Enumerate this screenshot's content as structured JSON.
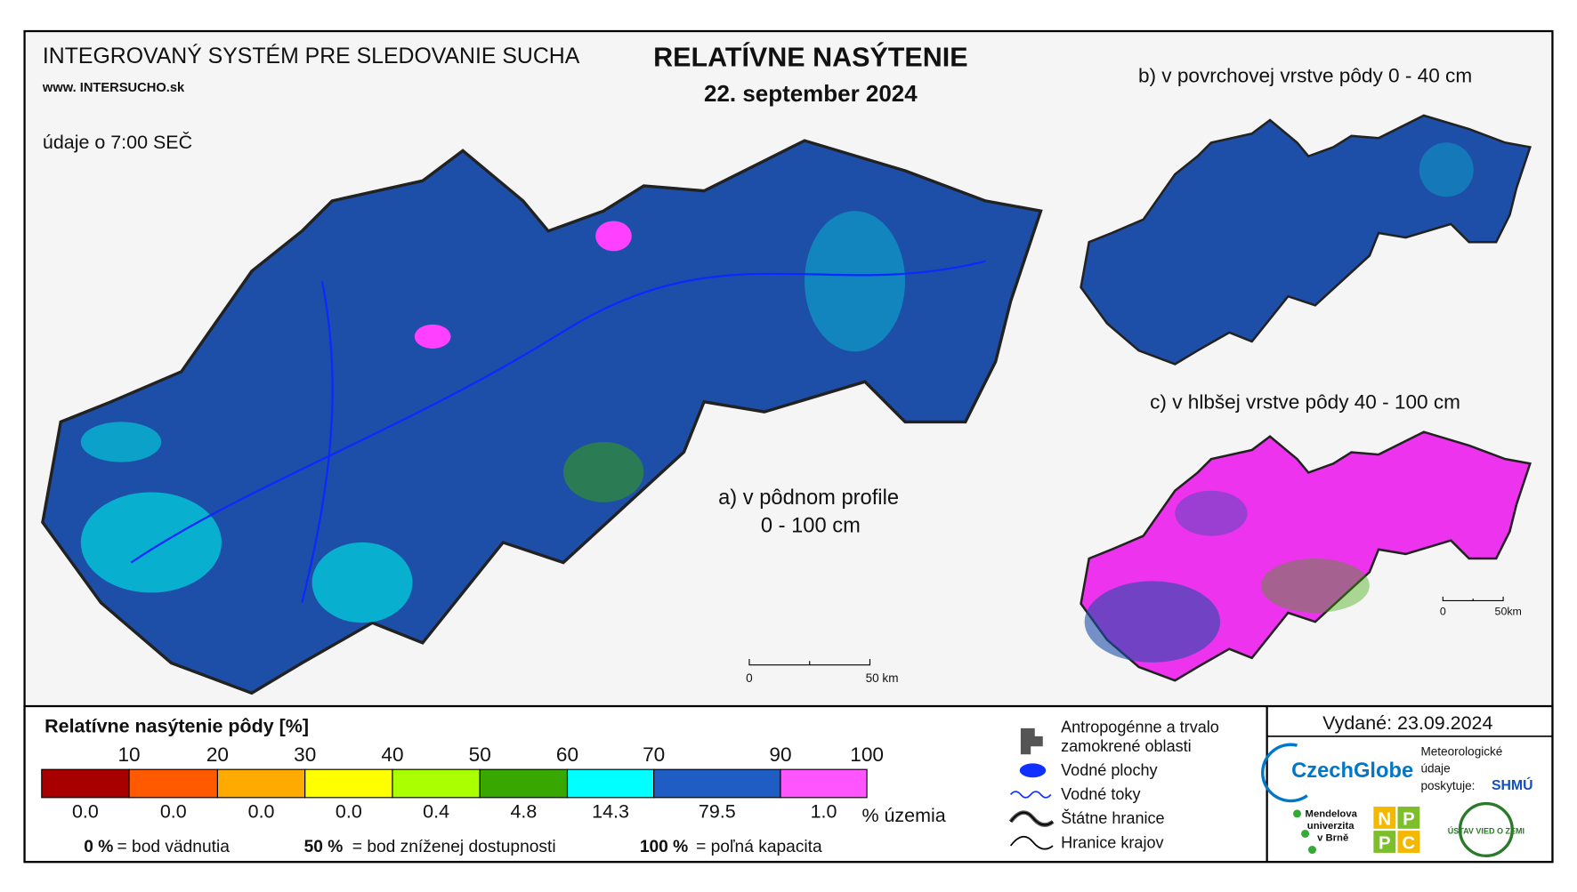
{
  "header": {
    "system": "INTEGROVANÝ SYSTÉM PRE SLEDOVANIE SUCHA",
    "website": "www. INTERSUCHO.sk",
    "time_note": "údaje o 7:00 SEČ",
    "title": "RELATÍVNE NASÝTENIE",
    "date": "22. september 2024"
  },
  "maps": {
    "a": {
      "label": "a) v pôdnom profile",
      "depth": "0 - 100 cm",
      "scale_start": "0",
      "scale_end": "50 km"
    },
    "b": {
      "label": "b) v povrchovej vrstve pôdy 0 - 40 cm"
    },
    "c": {
      "label": "c) v hlbšej vrstve pôdy 40 - 100 cm",
      "scale_start": "0",
      "scale_end": "50km"
    }
  },
  "legend": {
    "title": "Relatívne nasýtenie pôdy [%]",
    "thresholds": [
      "10",
      "20",
      "30",
      "40",
      "50",
      "60",
      "70",
      "90",
      "100"
    ],
    "colors": [
      "#a80000",
      "#ff5a00",
      "#ffaa00",
      "#ffff00",
      "#aaff00",
      "#38a800",
      "#00ffff",
      "#1f5cc4",
      "#ff55ff"
    ],
    "shares": [
      "0.0",
      "0.0",
      "0.0",
      "0.0",
      "0.4",
      "4.8",
      "14.3",
      "79.5",
      "1.0"
    ],
    "shares_unit": "% územia",
    "notes": [
      {
        "value": "0 %",
        "meaning": "= bod vädnutia"
      },
      {
        "value": "50 %",
        "meaning": "= bod zníženej dostupnosti"
      },
      {
        "value": "100 %",
        "meaning": "= poľná kapacita"
      }
    ]
  },
  "key": {
    "items": [
      "Antropogénne a trvalo",
      "zamokrené oblasti",
      "Vodné plochy",
      "Vodné toky",
      "Štátne hranice",
      "Hranice krajov"
    ]
  },
  "footer": {
    "issued": "Vydané: 23.09.2024",
    "czechglobe": "CzechGlobe",
    "meteo": [
      "Meteorologické",
      "údaje",
      "poskytuje:"
    ],
    "shmu": "SHMÚ",
    "mendel": [
      "Mendelova",
      "univerzita",
      "v Brně"
    ],
    "nppc": [
      "N",
      "P",
      "P",
      "C"
    ],
    "uvz": "ÚSTAV VIED O ZEMI"
  }
}
